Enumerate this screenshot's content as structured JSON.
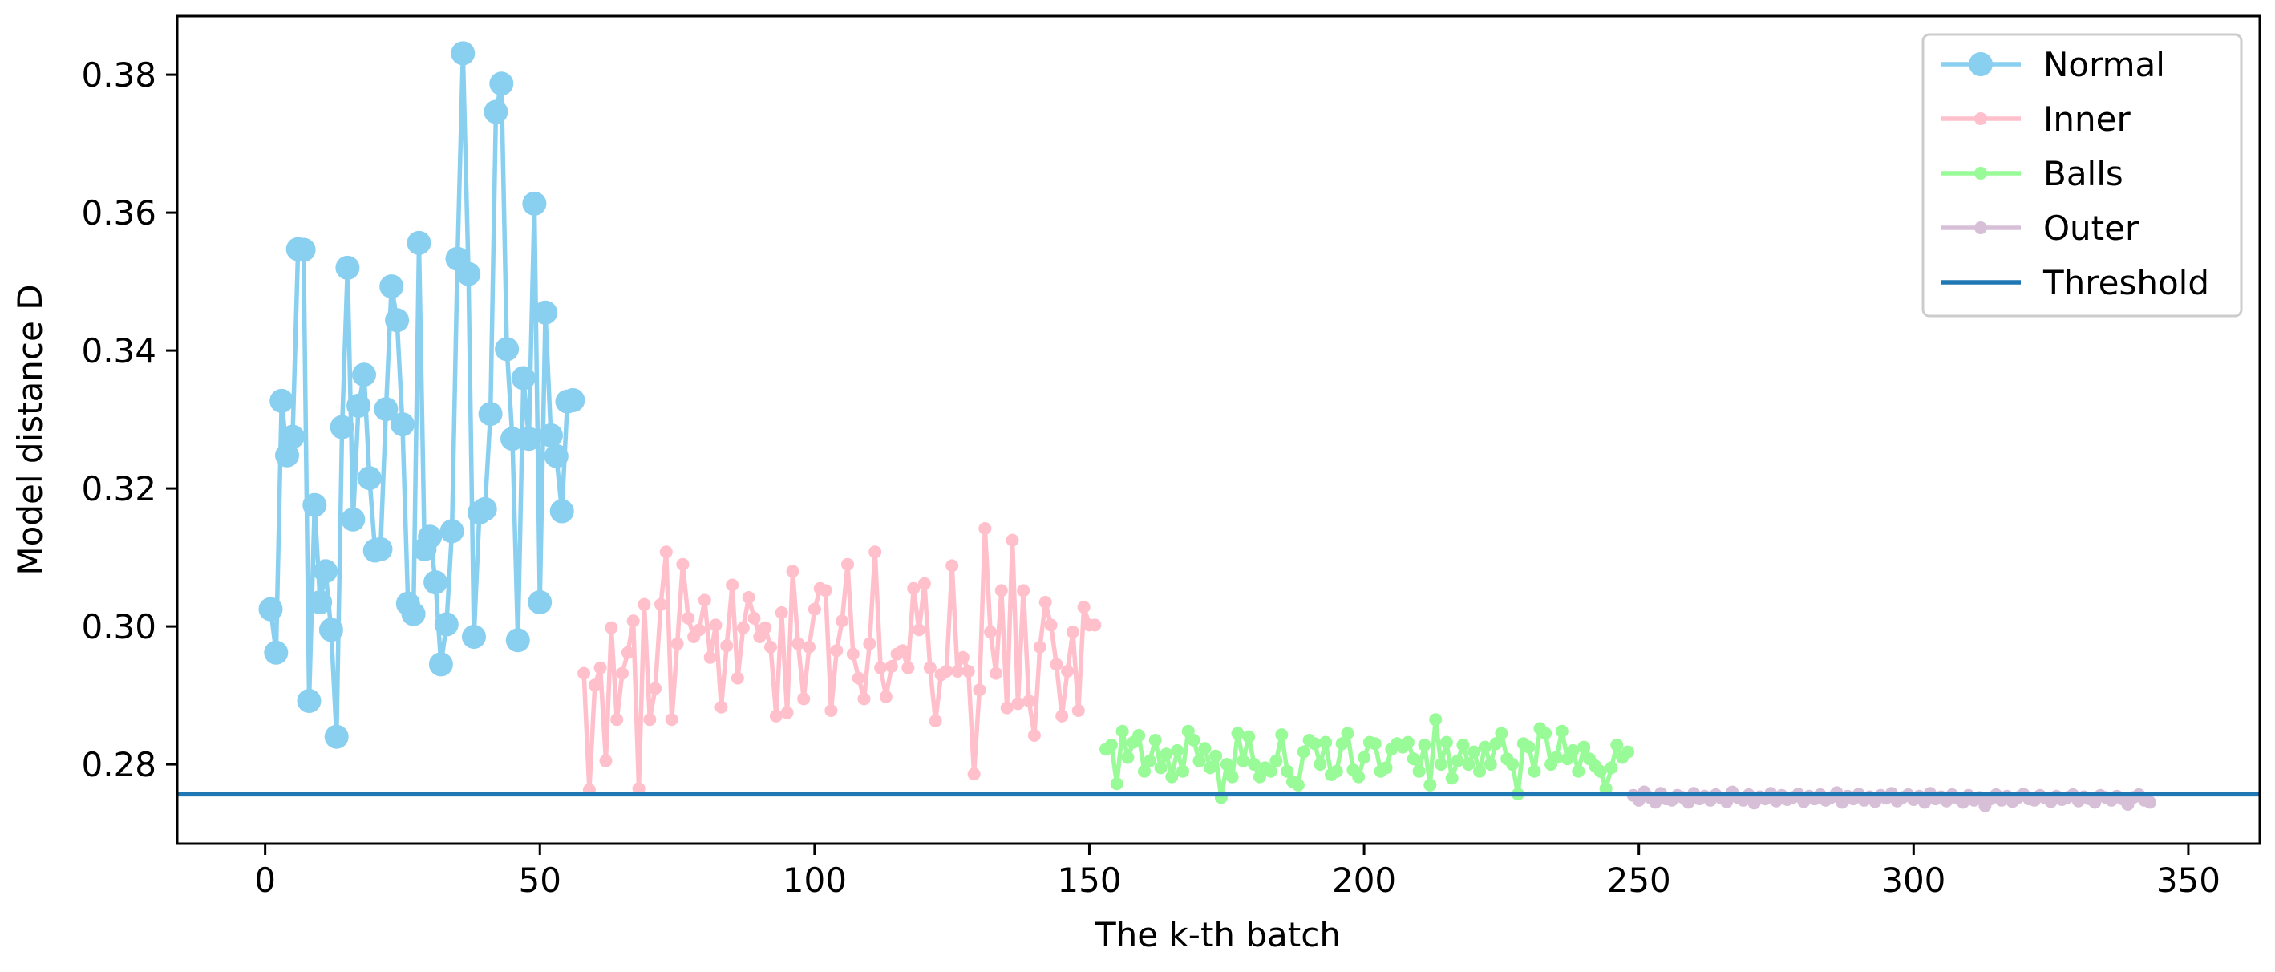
{
  "chart_data": {
    "type": "line",
    "xlabel": "The k-th batch",
    "ylabel": "Model distance D",
    "xlim": [
      -16,
      363
    ],
    "ylim": [
      0.2685,
      0.3885
    ],
    "xticks": [
      0,
      50,
      100,
      150,
      200,
      250,
      300,
      350
    ],
    "yticks": [
      0.28,
      0.3,
      0.32,
      0.34,
      0.36,
      0.38
    ],
    "ytick_labels": [
      "0.28",
      "0.30",
      "0.32",
      "0.34",
      "0.36",
      "0.38"
    ],
    "grid": false,
    "legend_position": "top-right",
    "series": [
      {
        "name": "Normal",
        "color": "#89CFF0",
        "marker_size": "large",
        "x": [
          1,
          2,
          3,
          4,
          5,
          6,
          7,
          8,
          9,
          10,
          11,
          12,
          13,
          14,
          15,
          16,
          17,
          18,
          19,
          20,
          21,
          22,
          23,
          24,
          25,
          26,
          27,
          28,
          29,
          30,
          31,
          32,
          33,
          34,
          35,
          36,
          37,
          38,
          39,
          40,
          41,
          42,
          43,
          44,
          45,
          46,
          47,
          48,
          49,
          50,
          51,
          52,
          53,
          54,
          55,
          56
        ],
        "values": [
          0.3025,
          0.2962,
          0.3327,
          0.3248,
          0.3275,
          0.3547,
          0.3546,
          0.2892,
          0.3176,
          0.3035,
          0.308,
          0.2995,
          0.284,
          0.3289,
          0.352,
          0.3155,
          0.332,
          0.3365,
          0.3215,
          0.311,
          0.3112,
          0.3315,
          0.3493,
          0.3444,
          0.3293,
          0.3033,
          0.3018,
          0.3556,
          0.3112,
          0.313,
          0.3064,
          0.2945,
          0.3003,
          0.3138,
          0.3533,
          0.3831,
          0.3511,
          0.2985,
          0.3165,
          0.317,
          0.3308,
          0.3746,
          0.3787,
          0.3402,
          0.3272,
          0.298,
          0.336,
          0.3272,
          0.3613,
          0.3035,
          0.3455,
          0.3277,
          0.3247,
          0.3167,
          0.3326,
          0.3328
        ]
      },
      {
        "name": "Inner",
        "color": "#FFBFCB",
        "marker_size": "small",
        "x": [
          58,
          59,
          60,
          61,
          62,
          63,
          64,
          65,
          66,
          67,
          68,
          69,
          70,
          71,
          72,
          73,
          74,
          75,
          76,
          77,
          78,
          79,
          80,
          81,
          82,
          83,
          84,
          85,
          86,
          87,
          88,
          89,
          90,
          91,
          92,
          93,
          94,
          95,
          96,
          97,
          98,
          99,
          100,
          101,
          102,
          103,
          104,
          105,
          106,
          107,
          108,
          109,
          110,
          111,
          112,
          113,
          114,
          115,
          116,
          117,
          118,
          119,
          120,
          121,
          122,
          123,
          124,
          125,
          126,
          127,
          128,
          129,
          130,
          131,
          132,
          133,
          134,
          135,
          136,
          137,
          138,
          139,
          140,
          141,
          142,
          143,
          144,
          145,
          146,
          147,
          148,
          149,
          150,
          151
        ],
        "values": [
          0.2932,
          0.2763,
          0.2915,
          0.294,
          0.2805,
          0.2998,
          0.2865,
          0.2932,
          0.2962,
          0.3008,
          0.2765,
          0.3032,
          0.2865,
          0.291,
          0.3032,
          0.3108,
          0.2865,
          0.2975,
          0.309,
          0.3012,
          0.2985,
          0.2995,
          0.3038,
          0.2955,
          0.3002,
          0.2883,
          0.2972,
          0.306,
          0.2925,
          0.2998,
          0.3042,
          0.3012,
          0.2985,
          0.2998,
          0.297,
          0.287,
          0.302,
          0.2875,
          0.308,
          0.2975,
          0.2895,
          0.297,
          0.3025,
          0.3055,
          0.3052,
          0.2878,
          0.2965,
          0.3008,
          0.309,
          0.296,
          0.2925,
          0.2895,
          0.2975,
          0.3108,
          0.294,
          0.2898,
          0.2942,
          0.296,
          0.2965,
          0.294,
          0.3055,
          0.2995,
          0.3062,
          0.294,
          0.2863,
          0.293,
          0.2935,
          0.3088,
          0.2935,
          0.2955,
          0.2935,
          0.2786,
          0.2908,
          0.3142,
          0.2992,
          0.2932,
          0.3052,
          0.2882,
          0.3125,
          0.2888,
          0.3052,
          0.2892,
          0.2842,
          0.297,
          0.3035,
          0.3002,
          0.2945,
          0.287,
          0.2935,
          0.2992,
          0.2878,
          0.3028,
          0.3002,
          0.3002
        ]
      },
      {
        "name": "Balls",
        "color": "#98FB98",
        "marker_size": "small",
        "x": [
          153,
          154,
          155,
          156,
          157,
          158,
          159,
          160,
          161,
          162,
          163,
          164,
          165,
          166,
          167,
          168,
          169,
          170,
          171,
          172,
          173,
          174,
          175,
          176,
          177,
          178,
          179,
          180,
          181,
          182,
          183,
          184,
          185,
          186,
          187,
          188,
          189,
          190,
          191,
          192,
          193,
          194,
          195,
          196,
          197,
          198,
          199,
          200,
          201,
          202,
          203,
          204,
          205,
          206,
          207,
          208,
          209,
          210,
          211,
          212,
          213,
          214,
          215,
          216,
          217,
          218,
          219,
          220,
          221,
          222,
          223,
          224,
          225,
          226,
          227,
          228,
          229,
          230,
          231,
          232,
          233,
          234,
          235,
          236,
          237,
          238,
          239,
          240,
          241,
          242,
          243,
          244,
          245,
          246,
          247,
          248
        ],
        "values": [
          0.2822,
          0.2828,
          0.2772,
          0.2848,
          0.281,
          0.2832,
          0.2842,
          0.279,
          0.2805,
          0.2835,
          0.2795,
          0.2815,
          0.2782,
          0.282,
          0.279,
          0.2848,
          0.2835,
          0.2805,
          0.2823,
          0.2795,
          0.2812,
          0.2752,
          0.28,
          0.2782,
          0.2845,
          0.2805,
          0.284,
          0.28,
          0.2782,
          0.2795,
          0.279,
          0.2805,
          0.2843,
          0.279,
          0.2775,
          0.277,
          0.2818,
          0.2835,
          0.283,
          0.28,
          0.2832,
          0.2785,
          0.279,
          0.283,
          0.2845,
          0.2792,
          0.2782,
          0.281,
          0.2832,
          0.283,
          0.279,
          0.2795,
          0.2822,
          0.283,
          0.2825,
          0.2832,
          0.2808,
          0.279,
          0.2828,
          0.277,
          0.2865,
          0.28,
          0.2832,
          0.278,
          0.2805,
          0.2828,
          0.28,
          0.2818,
          0.279,
          0.2825,
          0.28,
          0.283,
          0.2845,
          0.2808,
          0.28,
          0.2757,
          0.283,
          0.2825,
          0.279,
          0.2852,
          0.2845,
          0.28,
          0.281,
          0.2848,
          0.2808,
          0.282,
          0.279,
          0.2825,
          0.2808,
          0.2798,
          0.279,
          0.2765,
          0.2795,
          0.2828,
          0.281,
          0.2818
        ]
      },
      {
        "name": "Outer",
        "color": "#D8BFD8",
        "marker_size": "small",
        "x": [
          249,
          250,
          251,
          252,
          253,
          254,
          255,
          256,
          257,
          258,
          259,
          260,
          261,
          262,
          263,
          264,
          265,
          266,
          267,
          268,
          269,
          270,
          271,
          272,
          273,
          274,
          275,
          276,
          277,
          278,
          279,
          280,
          281,
          282,
          283,
          284,
          285,
          286,
          287,
          288,
          289,
          290,
          291,
          292,
          293,
          294,
          295,
          296,
          297,
          298,
          299,
          300,
          301,
          302,
          303,
          304,
          305,
          306,
          307,
          308,
          309,
          310,
          311,
          312,
          313,
          314,
          315,
          316,
          317,
          318,
          319,
          320,
          321,
          322,
          323,
          324,
          325,
          326,
          327,
          328,
          329,
          330,
          331,
          332,
          333,
          334,
          335,
          336,
          337,
          338,
          339,
          340,
          341,
          342,
          343
        ],
        "values": [
          0.2755,
          0.2748,
          0.276,
          0.2752,
          0.2745,
          0.2758,
          0.275,
          0.2748,
          0.2755,
          0.2752,
          0.2745,
          0.2758,
          0.275,
          0.2754,
          0.2748,
          0.2756,
          0.2751,
          0.2746,
          0.276,
          0.2752,
          0.2748,
          0.2756,
          0.2744,
          0.2753,
          0.275,
          0.2758,
          0.2747,
          0.2755,
          0.2749,
          0.2752,
          0.2757,
          0.2746,
          0.2754,
          0.275,
          0.2756,
          0.2748,
          0.2752,
          0.2759,
          0.2745,
          0.2754,
          0.275,
          0.2757,
          0.2748,
          0.2753,
          0.2746,
          0.2755,
          0.2751,
          0.2758,
          0.2747,
          0.2752,
          0.2756,
          0.2749,
          0.2754,
          0.2745,
          0.2758,
          0.275,
          0.2753,
          0.2747,
          0.2756,
          0.2751,
          0.2745,
          0.2755,
          0.2748,
          0.2752,
          0.274,
          0.275,
          0.2756,
          0.2748,
          0.2754,
          0.2746,
          0.2752,
          0.2757,
          0.275,
          0.2748,
          0.2755,
          0.2751,
          0.2746,
          0.2754,
          0.2749,
          0.2752,
          0.2756,
          0.2747,
          0.2753,
          0.275,
          0.2745,
          0.2755,
          0.2752,
          0.2748,
          0.2754,
          0.275,
          0.2742,
          0.2752,
          0.2756,
          0.2748,
          0.2745
        ]
      }
    ],
    "threshold": {
      "name": "Threshold",
      "color": "#1F77B4",
      "value": 0.2757
    }
  }
}
